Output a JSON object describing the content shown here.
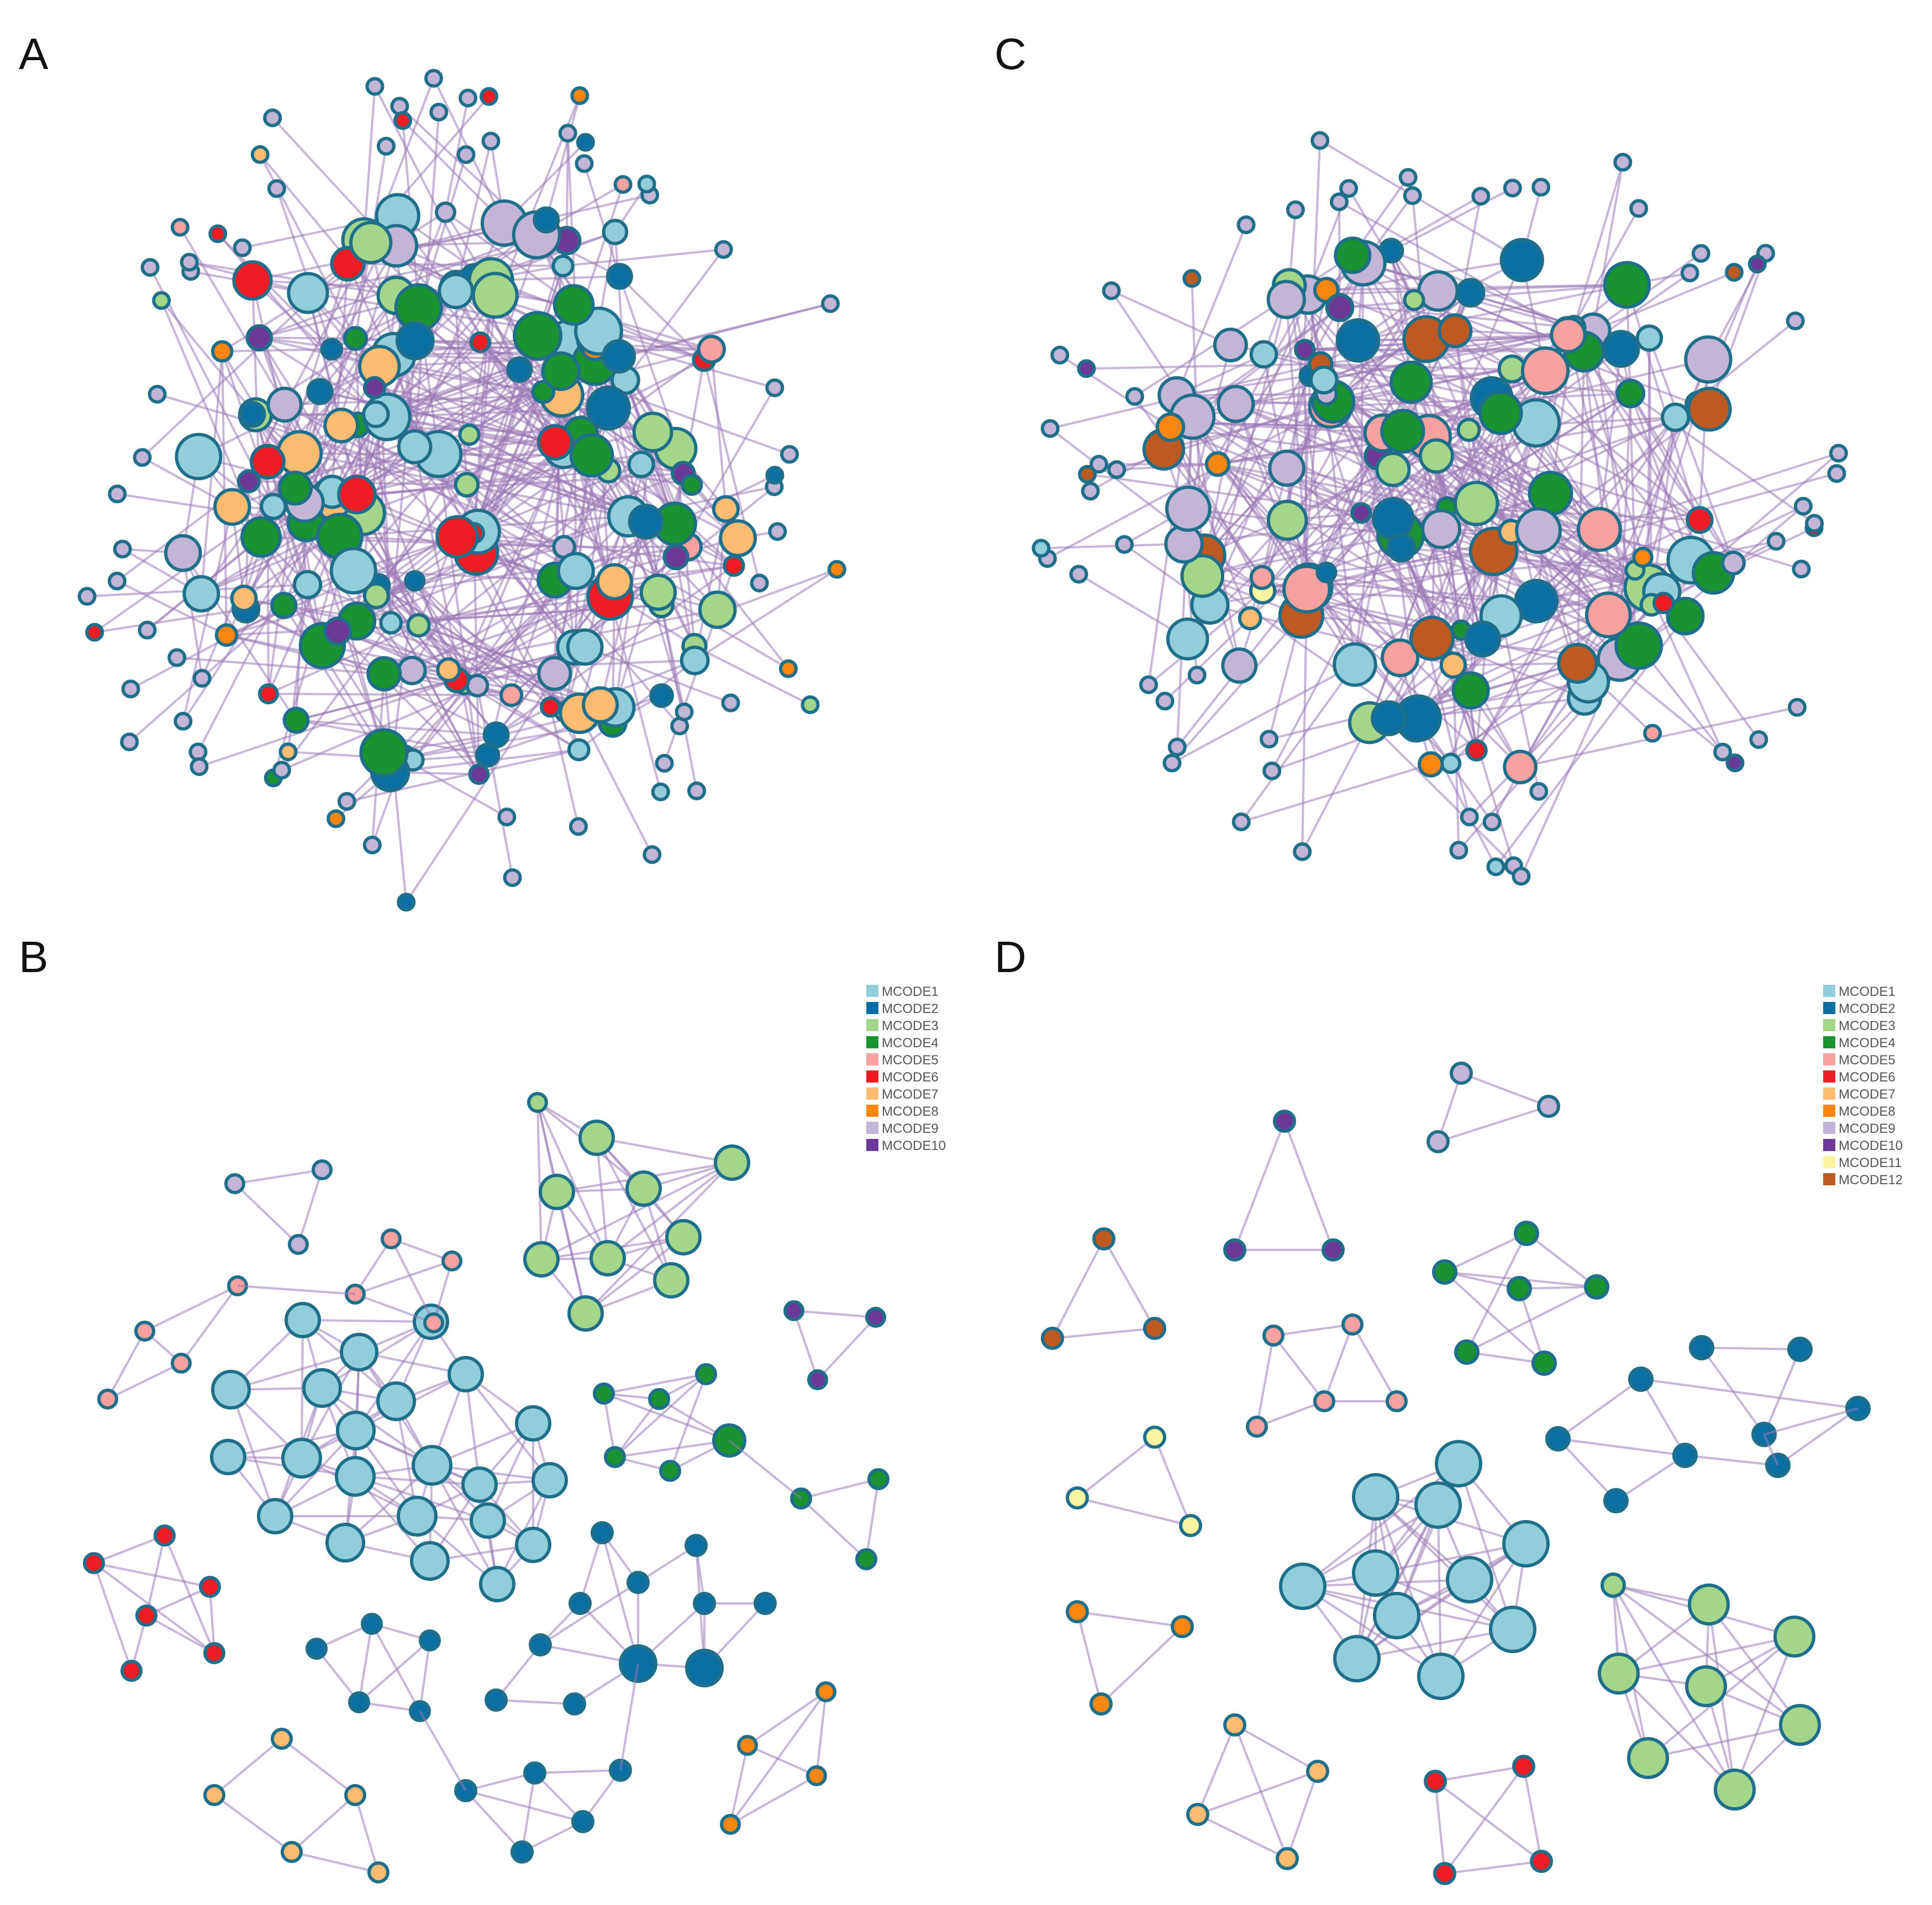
{
  "panels": [
    {
      "id": "A",
      "label": "A"
    },
    {
      "id": "B",
      "label": "B"
    },
    {
      "id": "C",
      "label": "C"
    },
    {
      "id": "D",
      "label": "D"
    }
  ],
  "legends": {
    "B": [
      {
        "label": "MCODE1",
        "color": "#92cddc"
      },
      {
        "label": "MCODE2",
        "color": "#0b6fa4"
      },
      {
        "label": "MCODE3",
        "color": "#a3d68a"
      },
      {
        "label": "MCODE4",
        "color": "#1b9232"
      },
      {
        "label": "MCODE5",
        "color": "#f7a1a1"
      },
      {
        "label": "MCODE6",
        "color": "#ee1c24"
      },
      {
        "label": "MCODE7",
        "color": "#fdbc71"
      },
      {
        "label": "MCODE8",
        "color": "#f9860f"
      },
      {
        "label": "MCODE9",
        "color": "#c3b5d8"
      },
      {
        "label": "MCODE10",
        "color": "#6c3a96"
      }
    ],
    "D": [
      {
        "label": "MCODE1",
        "color": "#92cddc"
      },
      {
        "label": "MCODE2",
        "color": "#0b6fa4"
      },
      {
        "label": "MCODE3",
        "color": "#a3d68a"
      },
      {
        "label": "MCODE4",
        "color": "#1b9232"
      },
      {
        "label": "MCODE5",
        "color": "#f7a1a1"
      },
      {
        "label": "MCODE6",
        "color": "#ee1c24"
      },
      {
        "label": "MCODE7",
        "color": "#fdbc71"
      },
      {
        "label": "MCODE8",
        "color": "#f9860f"
      },
      {
        "label": "MCODE9",
        "color": "#c3b5d8"
      },
      {
        "label": "MCODE10",
        "color": "#6c3a96"
      },
      {
        "label": "MCODE11",
        "color": "#faf5a0"
      },
      {
        "label": "MCODE12",
        "color": "#bd5a21"
      }
    ]
  },
  "colors": {
    "edge": "#9b7ab8",
    "node_stroke": "#1f6f8b",
    "hub_default": "#c3b5d8",
    "peripheral_default": "#c3b5d8"
  }
}
